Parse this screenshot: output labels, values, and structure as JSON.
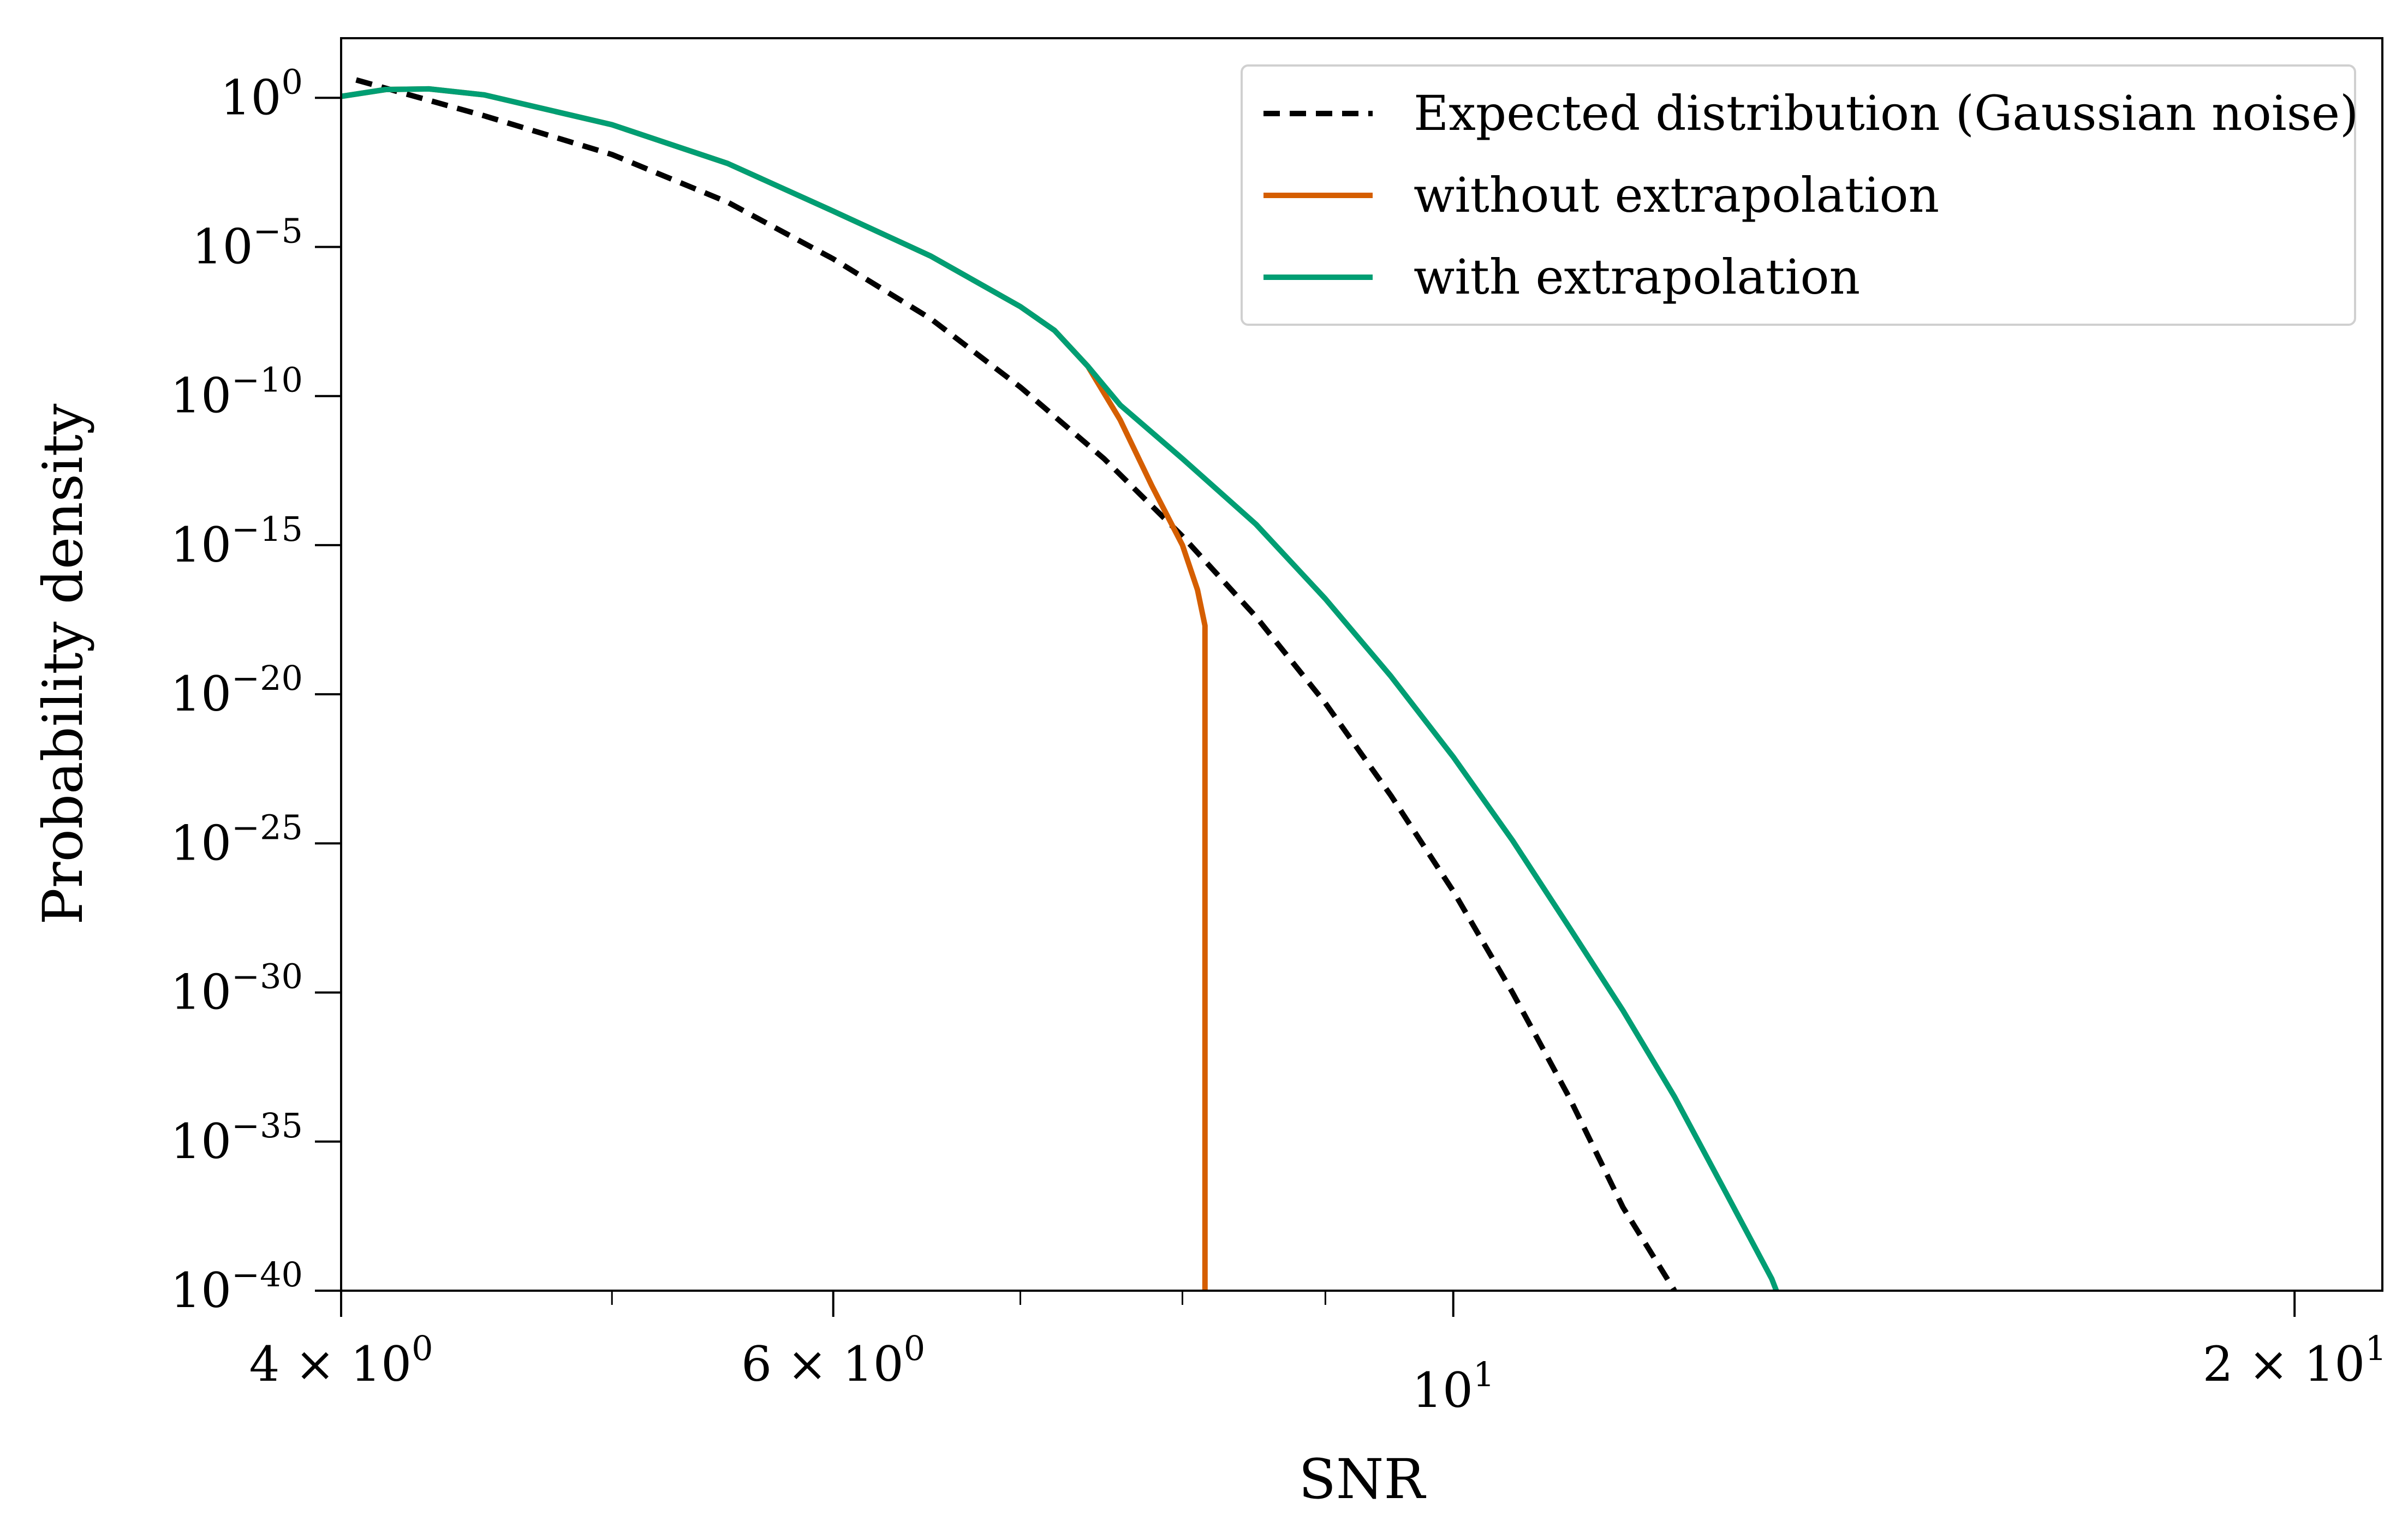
{
  "chart_data": {
    "type": "line",
    "title": "",
    "xlabel": "SNR",
    "ylabel": "Probability density",
    "xscale": "log",
    "yscale": "log",
    "xlim": [
      4.0,
      21.5
    ],
    "ylim_log10": [
      -40,
      2
    ],
    "x_major_ticks": [
      {
        "value": 4,
        "mantissa": "4",
        "times": "×",
        "base": "10",
        "exp": "0"
      },
      {
        "value": 6,
        "mantissa": "6",
        "times": "×",
        "base": "10",
        "exp": "0"
      },
      {
        "value": 10,
        "mantissa": "",
        "times": "",
        "base": "10",
        "exp": "1"
      },
      {
        "value": 20,
        "mantissa": "2",
        "times": "×",
        "base": "10",
        "exp": "1"
      }
    ],
    "x_minor_ticks": [
      5,
      7,
      8,
      9
    ],
    "y_ticks": [
      {
        "log10": 0,
        "base": "10",
        "exp": "0"
      },
      {
        "log10": -5,
        "base": "10",
        "exp": "−5"
      },
      {
        "log10": -10,
        "base": "10",
        "exp": "−10"
      },
      {
        "log10": -15,
        "base": "10",
        "exp": "−15"
      },
      {
        "log10": -20,
        "base": "10",
        "exp": "−20"
      },
      {
        "log10": -25,
        "base": "10",
        "exp": "−25"
      },
      {
        "log10": -30,
        "base": "10",
        "exp": "−30"
      },
      {
        "log10": -35,
        "base": "10",
        "exp": "−35"
      },
      {
        "log10": -40,
        "base": "10",
        "exp": "−40"
      }
    ],
    "legend_position": "upper right",
    "series": [
      {
        "name": "Expected distribution (Gaussian noise)",
        "color": "#000000",
        "dash": true,
        "points": [
          [
            4.05,
            0.6
          ],
          [
            4.5,
            -0.6
          ],
          [
            5.0,
            -1.9
          ],
          [
            5.5,
            -3.5
          ],
          [
            6.0,
            -5.4
          ],
          [
            6.5,
            -7.4
          ],
          [
            7.0,
            -9.7
          ],
          [
            7.5,
            -12.1
          ],
          [
            8.0,
            -14.7
          ],
          [
            8.5,
            -17.4
          ],
          [
            9.0,
            -20.3
          ],
          [
            9.5,
            -23.4
          ],
          [
            10.0,
            -26.6
          ],
          [
            10.5,
            -30.0
          ],
          [
            11.0,
            -33.5
          ],
          [
            11.5,
            -37.2
          ],
          [
            12.0,
            -40.0
          ]
        ]
      },
      {
        "name": "without extrapolation",
        "color": "#d55e00",
        "dash": false,
        "points": [
          [
            4.0,
            0.05
          ],
          [
            4.15,
            0.28
          ],
          [
            4.3,
            0.3
          ],
          [
            4.5,
            0.1
          ],
          [
            5.0,
            -0.9
          ],
          [
            5.5,
            -2.2
          ],
          [
            6.0,
            -3.8
          ],
          [
            6.5,
            -5.3
          ],
          [
            7.0,
            -7.0
          ],
          [
            7.2,
            -7.8
          ],
          [
            7.4,
            -9.0
          ],
          [
            7.6,
            -10.8
          ],
          [
            7.8,
            -13.0
          ],
          [
            8.0,
            -15.0
          ],
          [
            8.1,
            -16.5
          ],
          [
            8.15,
            -17.7
          ],
          [
            8.15,
            -40.0
          ]
        ]
      },
      {
        "name": "with extrapolation",
        "color": "#009e73",
        "dash": false,
        "points": [
          [
            4.0,
            0.05
          ],
          [
            4.15,
            0.28
          ],
          [
            4.3,
            0.3
          ],
          [
            4.5,
            0.1
          ],
          [
            5.0,
            -0.9
          ],
          [
            5.5,
            -2.2
          ],
          [
            6.0,
            -3.8
          ],
          [
            6.5,
            -5.3
          ],
          [
            7.0,
            -7.0
          ],
          [
            7.2,
            -7.8
          ],
          [
            7.4,
            -9.0
          ],
          [
            7.6,
            -10.3
          ],
          [
            8.0,
            -12.1
          ],
          [
            8.5,
            -14.3
          ],
          [
            9.0,
            -16.8
          ],
          [
            9.5,
            -19.4
          ],
          [
            10.0,
            -22.1
          ],
          [
            10.5,
            -24.9
          ],
          [
            11.0,
            -27.8
          ],
          [
            11.5,
            -30.6
          ],
          [
            12.0,
            -33.5
          ],
          [
            12.5,
            -36.6
          ],
          [
            13.0,
            -39.6
          ],
          [
            13.05,
            -40.0
          ]
        ]
      }
    ]
  }
}
